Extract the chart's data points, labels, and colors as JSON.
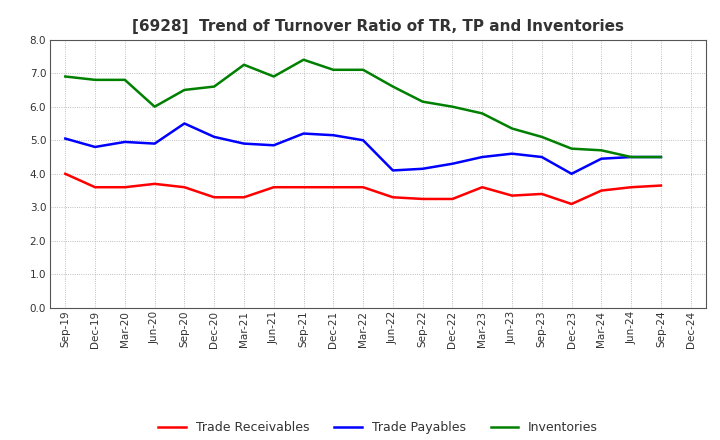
{
  "title": "[6928]  Trend of Turnover Ratio of TR, TP and Inventories",
  "x_labels": [
    "Sep-19",
    "Dec-19",
    "Mar-20",
    "Jun-20",
    "Sep-20",
    "Dec-20",
    "Mar-21",
    "Jun-21",
    "Sep-21",
    "Dec-21",
    "Mar-22",
    "Jun-22",
    "Sep-22",
    "Dec-22",
    "Mar-23",
    "Jun-23",
    "Sep-23",
    "Dec-23",
    "Mar-24",
    "Jun-24",
    "Sep-24",
    "Dec-24"
  ],
  "trade_receivables": [
    4.0,
    3.6,
    3.6,
    3.7,
    3.6,
    3.3,
    3.3,
    3.6,
    3.6,
    3.6,
    3.6,
    3.3,
    3.25,
    3.25,
    3.6,
    3.35,
    3.4,
    3.1,
    3.5,
    3.6,
    3.65,
    null
  ],
  "trade_payables": [
    5.05,
    4.8,
    4.95,
    4.9,
    5.5,
    5.1,
    4.9,
    4.85,
    5.2,
    5.15,
    5.0,
    4.1,
    4.15,
    4.3,
    4.5,
    4.6,
    4.5,
    4.0,
    4.45,
    4.5,
    4.5,
    null
  ],
  "inventories": [
    6.9,
    6.8,
    6.8,
    6.0,
    6.5,
    6.6,
    7.25,
    6.9,
    7.4,
    7.1,
    7.1,
    6.6,
    6.15,
    6.0,
    5.8,
    5.35,
    5.1,
    4.75,
    4.7,
    4.5,
    4.5,
    null
  ],
  "ylim": [
    0.0,
    8.0
  ],
  "yticks": [
    0.0,
    1.0,
    2.0,
    3.0,
    4.0,
    5.0,
    6.0,
    7.0,
    8.0
  ],
  "line_colors": {
    "trade_receivables": "#ff0000",
    "trade_payables": "#0000ff",
    "inventories": "#008000"
  },
  "legend_labels": [
    "Trade Receivables",
    "Trade Payables",
    "Inventories"
  ],
  "title_color": "#333333",
  "tick_color": "#333333",
  "background_color": "#ffffff",
  "grid_color": "#aaaaaa",
  "title_fontsize": 11,
  "tick_fontsize": 7.5,
  "legend_fontsize": 9,
  "linewidth": 1.8
}
